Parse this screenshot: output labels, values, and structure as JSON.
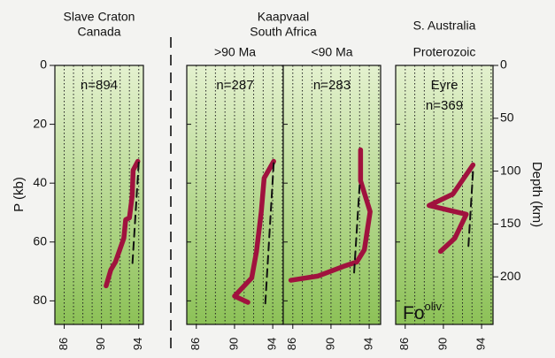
{
  "chart_data": [
    {
      "type": "line",
      "title": "Slave Craton",
      "subtitle": "Canada",
      "ylabel": "P (kb)",
      "ylim": [
        0,
        88
      ],
      "yticks": [
        0,
        20,
        40,
        60,
        80
      ],
      "xlim": [
        85,
        94.5
      ],
      "xticks": [
        86,
        90,
        94
      ],
      "xgrid": [
        86,
        87,
        88,
        89,
        90,
        91,
        92,
        93,
        94
      ],
      "annotations": [
        "n=894"
      ],
      "series": [
        {
          "color": "#a0123e",
          "dash": false,
          "x": [
            93.9,
            93.4,
            93.3,
            93.0,
            92.6,
            92.4,
            91.5,
            91.0,
            90.5
          ],
          "values": [
            32.6,
            35.6,
            44.3,
            51.8,
            52.4,
            58.7,
            66.8,
            69.5,
            74.9
          ]
        },
        {
          "color": "#111111",
          "dash": true,
          "x": [
            94.0,
            93.3
          ],
          "values": [
            33,
            68.6
          ]
        }
      ]
    },
    {
      "type": "line",
      "group_title": "Kaapvaal",
      "group_subtitle": "South Africa",
      "subtitle": ">90 Ma",
      "ylim": [
        0,
        88
      ],
      "xlim": [
        85,
        95.1
      ],
      "xticks": [
        86,
        90,
        94
      ],
      "xgrid": [
        86,
        87,
        88,
        89,
        90,
        91,
        92,
        93,
        94,
        95
      ],
      "annotations": [
        "n=287"
      ],
      "series": [
        {
          "color": "#a0123e",
          "dash": false,
          "x": [
            94.1,
            93.1,
            92.8,
            92.3,
            91.8,
            90.0,
            91.4
          ],
          "values": [
            32.6,
            38.3,
            49.7,
            63.2,
            72.2,
            78.4,
            80.5
          ]
        },
        {
          "color": "#111111",
          "dash": true,
          "x": [
            94.1,
            93.2
          ],
          "values": [
            33.2,
            82
          ]
        }
      ]
    },
    {
      "type": "line",
      "subtitle": "<90 Ma",
      "ylim": [
        0,
        88
      ],
      "xlim": [
        85,
        95.2
      ],
      "xticks": [
        86,
        90,
        94
      ],
      "xgrid": [
        86,
        87,
        88,
        89,
        90,
        91,
        92,
        93,
        94,
        95
      ],
      "annotations": [
        "n=283"
      ],
      "series": [
        {
          "color": "#a0123e",
          "dash": false,
          "x": [
            93.1,
            93.1,
            94.1,
            93.5,
            92.7,
            91.3,
            88.6,
            85.8
          ],
          "values": [
            28.7,
            39.2,
            49.7,
            62.6,
            66.8,
            68.3,
            71.6,
            73
          ]
        },
        {
          "color": "#111111",
          "dash": true,
          "x": [
            93.0,
            92.4
          ],
          "values": [
            40.7,
            71.6
          ]
        }
      ]
    },
    {
      "type": "line",
      "title": "S. Australia",
      "subtitle": "Proterozoic",
      "y2label": "Depth (km)",
      "ylim": [
        0,
        88
      ],
      "y2lim": [
        0,
        245
      ],
      "y2ticks": [
        0,
        50,
        100,
        150,
        200
      ],
      "xlim": [
        85,
        95.2
      ],
      "xticks": [
        86,
        90,
        94
      ],
      "xgrid": [
        86,
        87,
        88,
        89,
        90,
        91,
        92,
        93,
        94,
        95
      ],
      "annotations": [
        "Eyre",
        "n=369"
      ],
      "label": {
        "base": "Fo",
        "sup": "oliv"
      },
      "series": [
        {
          "color": "#a0123e",
          "dash": false,
          "x": [
            93.1,
            91.0,
            88.5,
            92.4,
            91.2,
            89.7
          ],
          "values": [
            33.8,
            43.7,
            47.6,
            50.6,
            58.7,
            63.2
          ]
        },
        {
          "color": "#111111",
          "dash": true,
          "x": [
            93.1,
            92.6
          ],
          "values": [
            36.2,
            62.6
          ]
        }
      ]
    }
  ]
}
